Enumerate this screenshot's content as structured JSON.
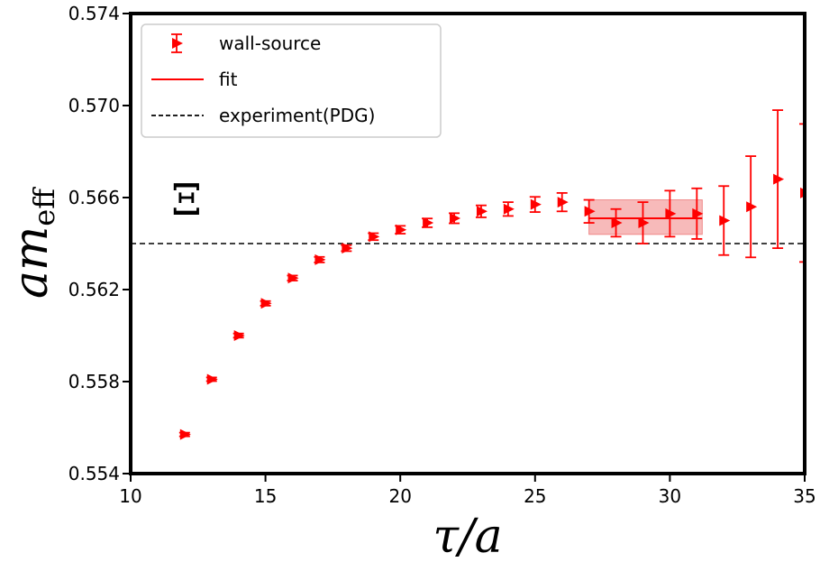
{
  "chart_data": {
    "type": "scatter",
    "title": "",
    "xlabel_main": "τ/a",
    "ylabel_main": "am",
    "ylabel_sub": "eff",
    "xlim": [
      10,
      35
    ],
    "ylim": [
      0.554,
      0.574
    ],
    "xticks": [
      10,
      15,
      20,
      25,
      30,
      35
    ],
    "yticks": [
      0.554,
      0.558,
      0.562,
      0.566,
      0.57,
      0.574
    ],
    "xtick_labels": [
      "10",
      "15",
      "20",
      "25",
      "30",
      "35"
    ],
    "ytick_labels": [
      "0.554",
      "0.558",
      "0.562",
      "0.566",
      "0.570",
      "0.574"
    ],
    "annotation": "Ξ",
    "legend_position": "top-left",
    "legend": [
      "wall-source",
      "fit",
      "experiment(PDG)"
    ],
    "colors": {
      "data": "#ff0000",
      "fit": "#ff0000",
      "fit_band": "#f4a3a3",
      "experiment": "#000000"
    },
    "series": [
      {
        "name": "wall-source",
        "points": [
          {
            "x": 12,
            "y": 0.5557,
            "err": 8e-05
          },
          {
            "x": 13,
            "y": 0.5581,
            "err": 8e-05
          },
          {
            "x": 14,
            "y": 0.56,
            "err": 9e-05
          },
          {
            "x": 15,
            "y": 0.5614,
            "err": 0.0001
          },
          {
            "x": 16,
            "y": 0.5625,
            "err": 0.00011
          },
          {
            "x": 17,
            "y": 0.5633,
            "err": 0.00012
          },
          {
            "x": 18,
            "y": 0.5638,
            "err": 0.00013
          },
          {
            "x": 19,
            "y": 0.5643,
            "err": 0.00015
          },
          {
            "x": 20,
            "y": 0.5646,
            "err": 0.00017
          },
          {
            "x": 21,
            "y": 0.5649,
            "err": 0.00019
          },
          {
            "x": 22,
            "y": 0.5651,
            "err": 0.00022
          },
          {
            "x": 23,
            "y": 0.5654,
            "err": 0.00026
          },
          {
            "x": 24,
            "y": 0.5655,
            "err": 0.0003
          },
          {
            "x": 25,
            "y": 0.5657,
            "err": 0.00033
          },
          {
            "x": 26,
            "y": 0.5658,
            "err": 0.0004
          },
          {
            "x": 27,
            "y": 0.5654,
            "err": 0.0005
          },
          {
            "x": 28,
            "y": 0.5649,
            "err": 0.0006
          },
          {
            "x": 29,
            "y": 0.5649,
            "err": 0.0009
          },
          {
            "x": 30,
            "y": 0.5653,
            "err": 0.001
          },
          {
            "x": 31,
            "y": 0.5653,
            "err": 0.0011
          },
          {
            "x": 32,
            "y": 0.565,
            "err": 0.0015
          },
          {
            "x": 33,
            "y": 0.5656,
            "err": 0.0022
          },
          {
            "x": 34,
            "y": 0.5668,
            "err": 0.003
          },
          {
            "x": 35,
            "y": 0.5662,
            "err": 0.003
          }
        ]
      }
    ],
    "fit": {
      "x_start": 27,
      "x_end": 31.2,
      "value": 0.5651,
      "band_low": 0.5644,
      "band_high": 0.5659
    },
    "experiment_value": 0.564
  }
}
